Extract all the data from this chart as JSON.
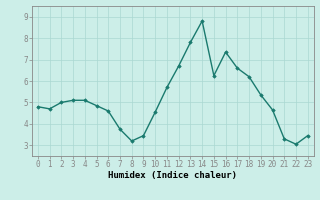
{
  "x": [
    0,
    1,
    2,
    3,
    4,
    5,
    6,
    7,
    8,
    9,
    10,
    11,
    12,
    13,
    14,
    15,
    16,
    17,
    18,
    19,
    20,
    21,
    22,
    23
  ],
  "y": [
    4.8,
    4.7,
    5.0,
    5.1,
    5.1,
    4.85,
    4.6,
    3.75,
    3.2,
    3.45,
    4.55,
    5.7,
    6.7,
    7.8,
    8.8,
    6.25,
    7.35,
    6.6,
    6.2,
    5.35,
    4.65,
    3.3,
    3.05,
    3.45
  ],
  "line_color": "#1a7a6e",
  "marker": "D",
  "marker_size": 1.8,
  "bg_color": "#cceee8",
  "grid_color": "#aad8d2",
  "xlabel": "Humidex (Indice chaleur)",
  "ylim": [
    2.5,
    9.5
  ],
  "xlim": [
    -0.5,
    23.5
  ],
  "yticks": [
    3,
    4,
    5,
    6,
    7,
    8,
    9
  ],
  "xticks": [
    0,
    1,
    2,
    3,
    4,
    5,
    6,
    7,
    8,
    9,
    10,
    11,
    12,
    13,
    14,
    15,
    16,
    17,
    18,
    19,
    20,
    21,
    22,
    23
  ],
  "tick_fontsize": 5.5,
  "xlabel_fontsize": 6.5,
  "linewidth": 1.0,
  "spine_color": "#888888"
}
